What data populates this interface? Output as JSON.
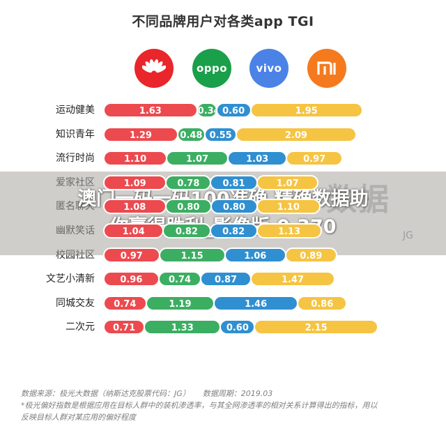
{
  "title": "不同品牌用户对各类app TGI",
  "brands": [
    {
      "name": "huawei",
      "color": "#e9262b",
      "icon": "huawei-logo-icon",
      "text": ""
    },
    {
      "name": "oppo",
      "color": "#1a9f4a",
      "icon": "oppo-logo-icon",
      "text": "oppo"
    },
    {
      "name": "vivo",
      "color": "#4b82e6",
      "icon": "vivo-logo-icon",
      "text": "vivo"
    },
    {
      "name": "mi",
      "color": "#f57a1e",
      "icon": "mi-logo-icon",
      "text": ""
    }
  ],
  "colors": {
    "huawei": "#ec4a4f",
    "oppo": "#3cae62",
    "vivo": "#2f8fd1",
    "mi": "#f6c443",
    "overlay": "#a9a5a0"
  },
  "chart_data": {
    "type": "bar",
    "stacked": true,
    "orientation": "horizontal",
    "title": "不同品牌用户对各类app TGI",
    "categories": [
      "运动健美",
      "知识青年",
      "流行时尚",
      "爱家社区",
      "匿名聊天",
      "幽默笑话",
      "校园社区",
      "文艺小清新",
      "同城交友",
      "二次元"
    ],
    "series": [
      {
        "name": "huawei",
        "values": [
          1.63,
          1.29,
          1.1,
          1.09,
          1.08,
          1.04,
          0.97,
          0.96,
          0.74,
          0.71
        ]
      },
      {
        "name": "oppo",
        "values": [
          0.34,
          0.48,
          1.07,
          0.78,
          0.8,
          0.82,
          1.15,
          0.74,
          1.19,
          1.33
        ]
      },
      {
        "name": "vivo",
        "values": [
          0.6,
          0.55,
          1.03,
          0.81,
          0.8,
          0.82,
          1.06,
          0.87,
          1.46,
          0.6
        ]
      },
      {
        "name": "mi",
        "values": [
          1.95,
          2.09,
          0.97,
          1.07,
          1.1,
          1.13,
          0.89,
          1.47,
          0.86,
          2.15
        ]
      }
    ],
    "legend": "top-logos",
    "grid": false
  },
  "overlay_caption": {
    "line1": "澳门一码一码100准确,精确数据助",
    "line2": "你赢得胜利_影像版.0.370"
  },
  "watermark": {
    "brand": "数据",
    "jg": "JG"
  },
  "footer": {
    "source": "数据来源：极光大数据（纳斯达克股票代码：JG）",
    "period": "数据周期：2019.03",
    "note1": "*极光偏好指数是根据应用在目标人群中的装机渗透率，与其全网渗透率的相对关系计算得出的指标，用以",
    "note2": "反映目标人群对某应用的偏好程度"
  }
}
